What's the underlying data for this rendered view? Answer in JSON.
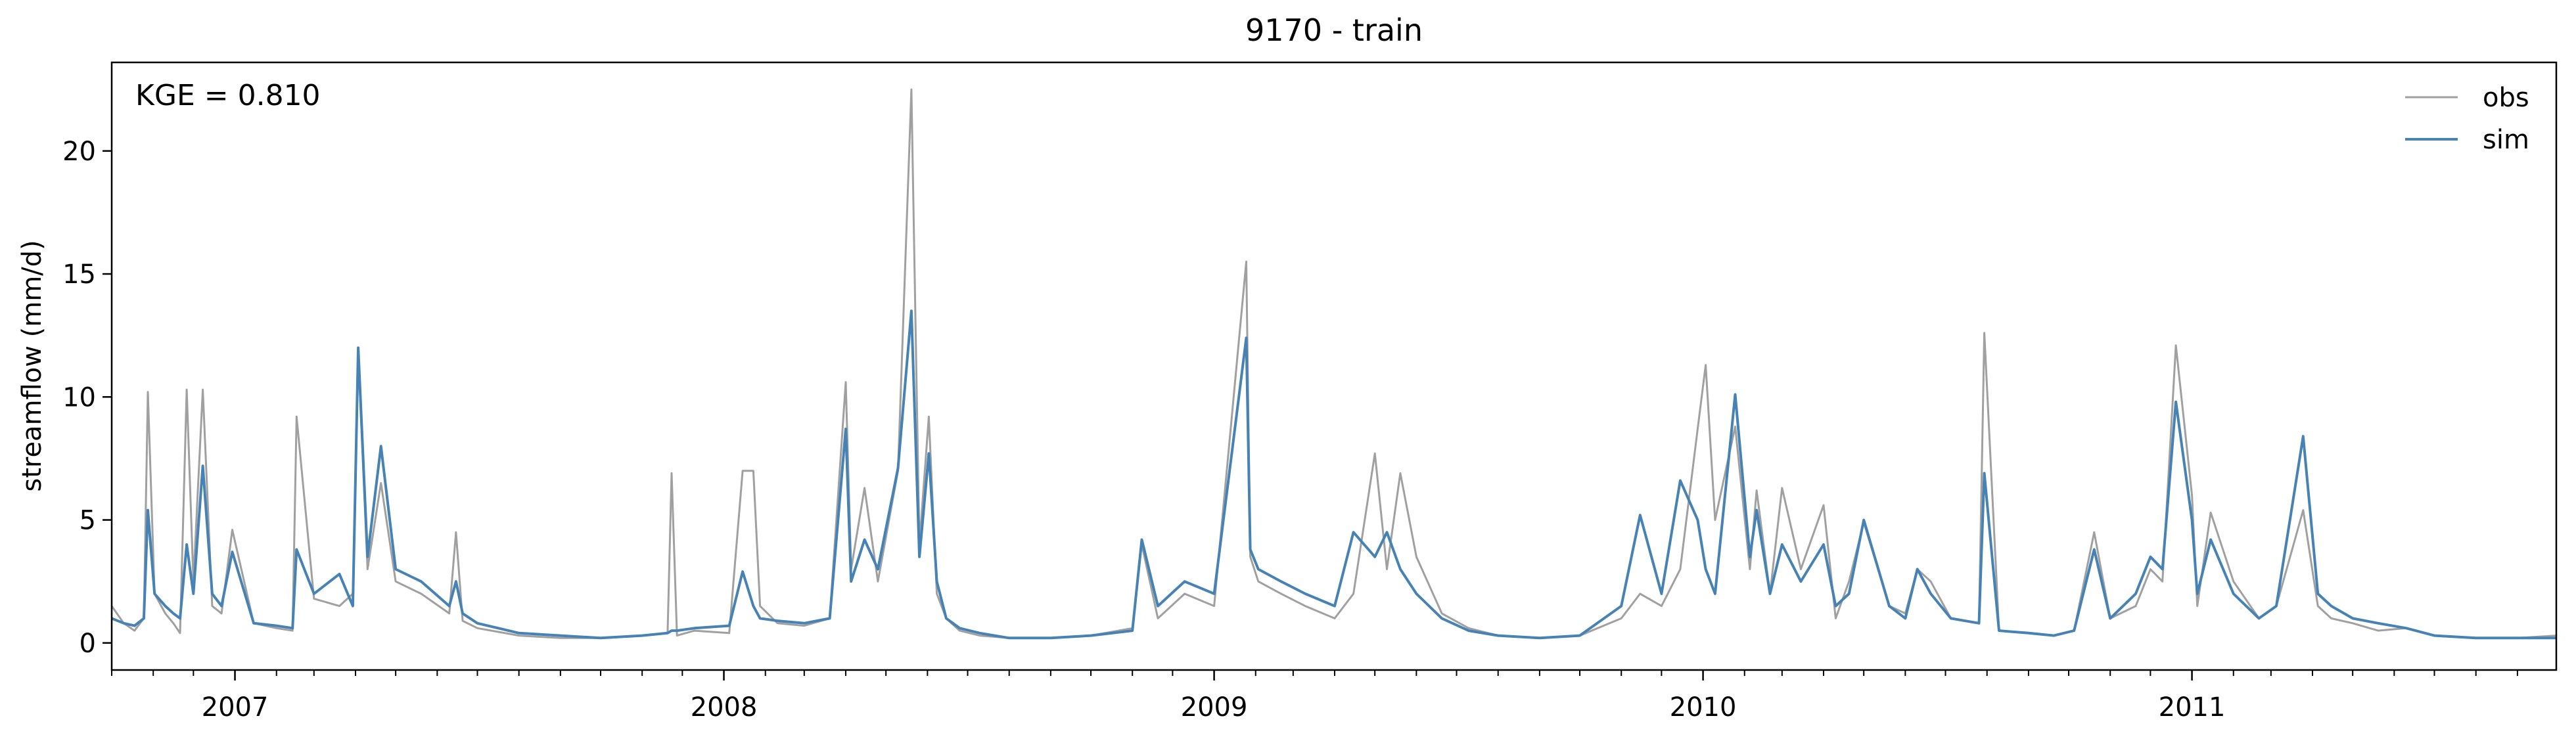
{
  "chart_data": {
    "type": "line",
    "title": "9170 - train",
    "xlabel": "",
    "ylabel": "streamflow (mm/d)",
    "annotation": "KGE = 0.810",
    "xlim": [
      "2006-10-01",
      "2011-09-30"
    ],
    "ylim": [
      -1.1,
      23.6
    ],
    "x_ticks": [
      "2007",
      "2008",
      "2009",
      "2010",
      "2011"
    ],
    "x_tick_dates": [
      "2007-01-01",
      "2008-01-01",
      "2009-01-01",
      "2010-01-01",
      "2011-01-01"
    ],
    "y_ticks": [
      0,
      5,
      10,
      15,
      20
    ],
    "grid": false,
    "legend_position": "top-right",
    "series": [
      {
        "name": "obs",
        "color": "#a0a0a0",
        "x": [
          "2006-10-01",
          "2006-10-10",
          "2006-10-18",
          "2006-10-25",
          "2006-10-28",
          "2006-11-02",
          "2006-11-10",
          "2006-11-16",
          "2006-11-21",
          "2006-11-26",
          "2006-12-01",
          "2006-12-08",
          "2006-12-15",
          "2006-12-22",
          "2006-12-30",
          "2007-01-15",
          "2007-02-01",
          "2007-02-13",
          "2007-02-16",
          "2007-03-01",
          "2007-03-20",
          "2007-03-30",
          "2007-04-03",
          "2007-04-10",
          "2007-04-20",
          "2007-05-01",
          "2007-05-20",
          "2007-06-10",
          "2007-06-15",
          "2007-06-20",
          "2007-07-01",
          "2007-08-01",
          "2007-09-01",
          "2007-10-01",
          "2007-11-01",
          "2007-11-20",
          "2007-11-23",
          "2007-11-27",
          "2007-12-10",
          "2008-01-05",
          "2008-01-15",
          "2008-01-23",
          "2008-01-28",
          "2008-02-10",
          "2008-03-01",
          "2008-03-20",
          "2008-04-01",
          "2008-04-05",
          "2008-04-15",
          "2008-04-25",
          "2008-05-10",
          "2008-05-20",
          "2008-05-26",
          "2008-06-02",
          "2008-06-08",
          "2008-06-15",
          "2008-06-25",
          "2008-07-10",
          "2008-08-01",
          "2008-09-01",
          "2008-10-01",
          "2008-11-01",
          "2008-11-08",
          "2008-11-20",
          "2008-12-10",
          "2009-01-01",
          "2009-01-25",
          "2009-01-28",
          "2009-02-03",
          "2009-02-20",
          "2009-03-10",
          "2009-04-01",
          "2009-04-15",
          "2009-05-01",
          "2009-05-10",
          "2009-05-20",
          "2009-06-01",
          "2009-06-20",
          "2009-07-10",
          "2009-08-01",
          "2009-09-01",
          "2009-10-01",
          "2009-11-01",
          "2009-11-15",
          "2009-12-01",
          "2009-12-15",
          "2009-12-28",
          "2010-01-03",
          "2010-01-10",
          "2010-01-25",
          "2010-02-05",
          "2010-02-10",
          "2010-02-20",
          "2010-03-01",
          "2010-03-15",
          "2010-04-01",
          "2010-04-10",
          "2010-04-20",
          "2010-05-01",
          "2010-05-20",
          "2010-06-01",
          "2010-06-10",
          "2010-06-20",
          "2010-07-05",
          "2010-07-26",
          "2010-07-30",
          "2010-08-10",
          "2010-09-01",
          "2010-09-20",
          "2010-10-05",
          "2010-10-20",
          "2010-11-01",
          "2010-11-20",
          "2010-12-01",
          "2010-12-10",
          "2010-12-20",
          "2011-01-01",
          "2011-01-05",
          "2011-01-15",
          "2011-02-01",
          "2011-02-20",
          "2011-03-05",
          "2011-03-25",
          "2011-04-05",
          "2011-04-15",
          "2011-05-01",
          "2011-05-20",
          "2011-06-10",
          "2011-07-01",
          "2011-08-01",
          "2011-09-01",
          "2011-09-30"
        ],
        "values": [
          1.5,
          0.8,
          0.5,
          1.0,
          10.2,
          2.0,
          1.2,
          0.8,
          0.4,
          10.3,
          2.5,
          10.3,
          1.5,
          1.2,
          4.6,
          0.8,
          0.6,
          0.5,
          9.2,
          1.8,
          1.5,
          2.0,
          11.8,
          3.0,
          6.5,
          2.5,
          2.0,
          1.2,
          4.5,
          0.9,
          0.6,
          0.3,
          0.2,
          0.2,
          0.3,
          0.4,
          6.9,
          0.3,
          0.5,
          0.4,
          7.0,
          7.0,
          1.5,
          0.8,
          0.7,
          1.0,
          10.6,
          3.0,
          6.3,
          2.5,
          7.0,
          22.5,
          4.0,
          9.2,
          2.0,
          1.0,
          0.5,
          0.3,
          0.2,
          0.2,
          0.3,
          0.6,
          4.0,
          1.0,
          2.0,
          1.5,
          15.5,
          3.5,
          2.5,
          2.0,
          1.5,
          1.0,
          2.0,
          7.7,
          3.0,
          6.9,
          3.5,
          1.2,
          0.6,
          0.3,
          0.2,
          0.3,
          1.0,
          2.0,
          1.5,
          3.0,
          8.7,
          11.3,
          5.0,
          8.8,
          3.0,
          6.2,
          2.0,
          6.3,
          3.0,
          5.6,
          1.0,
          2.5,
          4.9,
          1.5,
          1.2,
          3.0,
          2.5,
          1.0,
          0.8,
          12.6,
          0.5,
          0.4,
          0.3,
          0.5,
          4.5,
          1.0,
          1.5,
          3.0,
          2.5,
          12.1,
          6.0,
          1.5,
          5.3,
          2.5,
          1.0,
          1.5,
          5.4,
          1.5,
          1.0,
          0.8,
          0.5,
          0.6,
          0.3,
          0.2,
          0.2,
          0.3
        ]
      },
      {
        "name": "sim",
        "color": "#4682b4",
        "x": [
          "2006-10-01",
          "2006-10-10",
          "2006-10-18",
          "2006-10-25",
          "2006-10-28",
          "2006-11-02",
          "2006-11-10",
          "2006-11-16",
          "2006-11-21",
          "2006-11-26",
          "2006-12-01",
          "2006-12-08",
          "2006-12-15",
          "2006-12-22",
          "2006-12-30",
          "2007-01-15",
          "2007-02-01",
          "2007-02-13",
          "2007-02-16",
          "2007-03-01",
          "2007-03-20",
          "2007-03-30",
          "2007-04-03",
          "2007-04-10",
          "2007-04-20",
          "2007-05-01",
          "2007-05-20",
          "2007-06-10",
          "2007-06-15",
          "2007-06-20",
          "2007-07-01",
          "2007-08-01",
          "2007-09-01",
          "2007-10-01",
          "2007-11-01",
          "2007-11-20",
          "2007-11-23",
          "2007-11-27",
          "2007-12-10",
          "2008-01-05",
          "2008-01-15",
          "2008-01-23",
          "2008-01-28",
          "2008-02-10",
          "2008-03-01",
          "2008-03-20",
          "2008-04-01",
          "2008-04-05",
          "2008-04-15",
          "2008-04-25",
          "2008-05-10",
          "2008-05-20",
          "2008-05-26",
          "2008-06-02",
          "2008-06-08",
          "2008-06-15",
          "2008-06-25",
          "2008-07-10",
          "2008-08-01",
          "2008-09-01",
          "2008-10-01",
          "2008-11-01",
          "2008-11-08",
          "2008-11-20",
          "2008-12-10",
          "2009-01-01",
          "2009-01-25",
          "2009-01-28",
          "2009-02-03",
          "2009-02-20",
          "2009-03-10",
          "2009-04-01",
          "2009-04-15",
          "2009-05-01",
          "2009-05-10",
          "2009-05-20",
          "2009-06-01",
          "2009-06-20",
          "2009-07-10",
          "2009-08-01",
          "2009-09-01",
          "2009-10-01",
          "2009-11-01",
          "2009-11-15",
          "2009-12-01",
          "2009-12-15",
          "2009-12-28",
          "2010-01-03",
          "2010-01-10",
          "2010-01-25",
          "2010-02-05",
          "2010-02-10",
          "2010-02-20",
          "2010-03-01",
          "2010-03-15",
          "2010-04-01",
          "2010-04-10",
          "2010-04-20",
          "2010-05-01",
          "2010-05-20",
          "2010-06-01",
          "2010-06-10",
          "2010-06-20",
          "2010-07-05",
          "2010-07-26",
          "2010-07-30",
          "2010-08-10",
          "2010-09-01",
          "2010-09-20",
          "2010-10-05",
          "2010-10-20",
          "2010-11-01",
          "2010-11-20",
          "2010-12-01",
          "2010-12-10",
          "2010-12-20",
          "2011-01-01",
          "2011-01-05",
          "2011-01-15",
          "2011-02-01",
          "2011-02-20",
          "2011-03-05",
          "2011-03-25",
          "2011-04-05",
          "2011-04-15",
          "2011-05-01",
          "2011-05-20",
          "2011-06-10",
          "2011-07-01",
          "2011-08-01",
          "2011-09-01",
          "2011-09-30"
        ],
        "values": [
          1.0,
          0.8,
          0.7,
          1.0,
          5.4,
          2.0,
          1.5,
          1.2,
          1.0,
          4.0,
          2.0,
          7.2,
          2.0,
          1.5,
          3.7,
          0.8,
          0.7,
          0.6,
          3.8,
          2.0,
          2.8,
          1.5,
          12.0,
          3.5,
          8.0,
          3.0,
          2.5,
          1.5,
          2.5,
          1.2,
          0.8,
          0.4,
          0.3,
          0.2,
          0.3,
          0.4,
          0.5,
          0.5,
          0.6,
          0.7,
          2.9,
          1.5,
          1.0,
          0.9,
          0.8,
          1.0,
          8.7,
          2.5,
          4.2,
          3.0,
          7.1,
          13.5,
          3.5,
          7.7,
          2.5,
          1.0,
          0.6,
          0.4,
          0.2,
          0.2,
          0.3,
          0.5,
          4.2,
          1.5,
          2.5,
          2.0,
          12.4,
          3.8,
          3.0,
          2.5,
          2.0,
          1.5,
          4.5,
          3.5,
          4.5,
          3.0,
          2.0,
          1.0,
          0.5,
          0.3,
          0.2,
          0.3,
          1.5,
          5.2,
          2.0,
          6.6,
          5.0,
          3.0,
          2.0,
          10.1,
          3.5,
          5.4,
          2.0,
          4.0,
          2.5,
          4.0,
          1.5,
          2.0,
          5.0,
          1.5,
          1.0,
          3.0,
          2.0,
          1.0,
          0.8,
          6.9,
          0.5,
          0.4,
          0.3,
          0.5,
          3.8,
          1.0,
          2.0,
          3.5,
          3.0,
          9.8,
          5.0,
          2.0,
          4.2,
          2.0,
          1.0,
          1.5,
          8.4,
          2.0,
          1.5,
          1.0,
          0.8,
          0.6,
          0.3,
          0.2,
          0.2,
          0.2
        ]
      }
    ]
  }
}
